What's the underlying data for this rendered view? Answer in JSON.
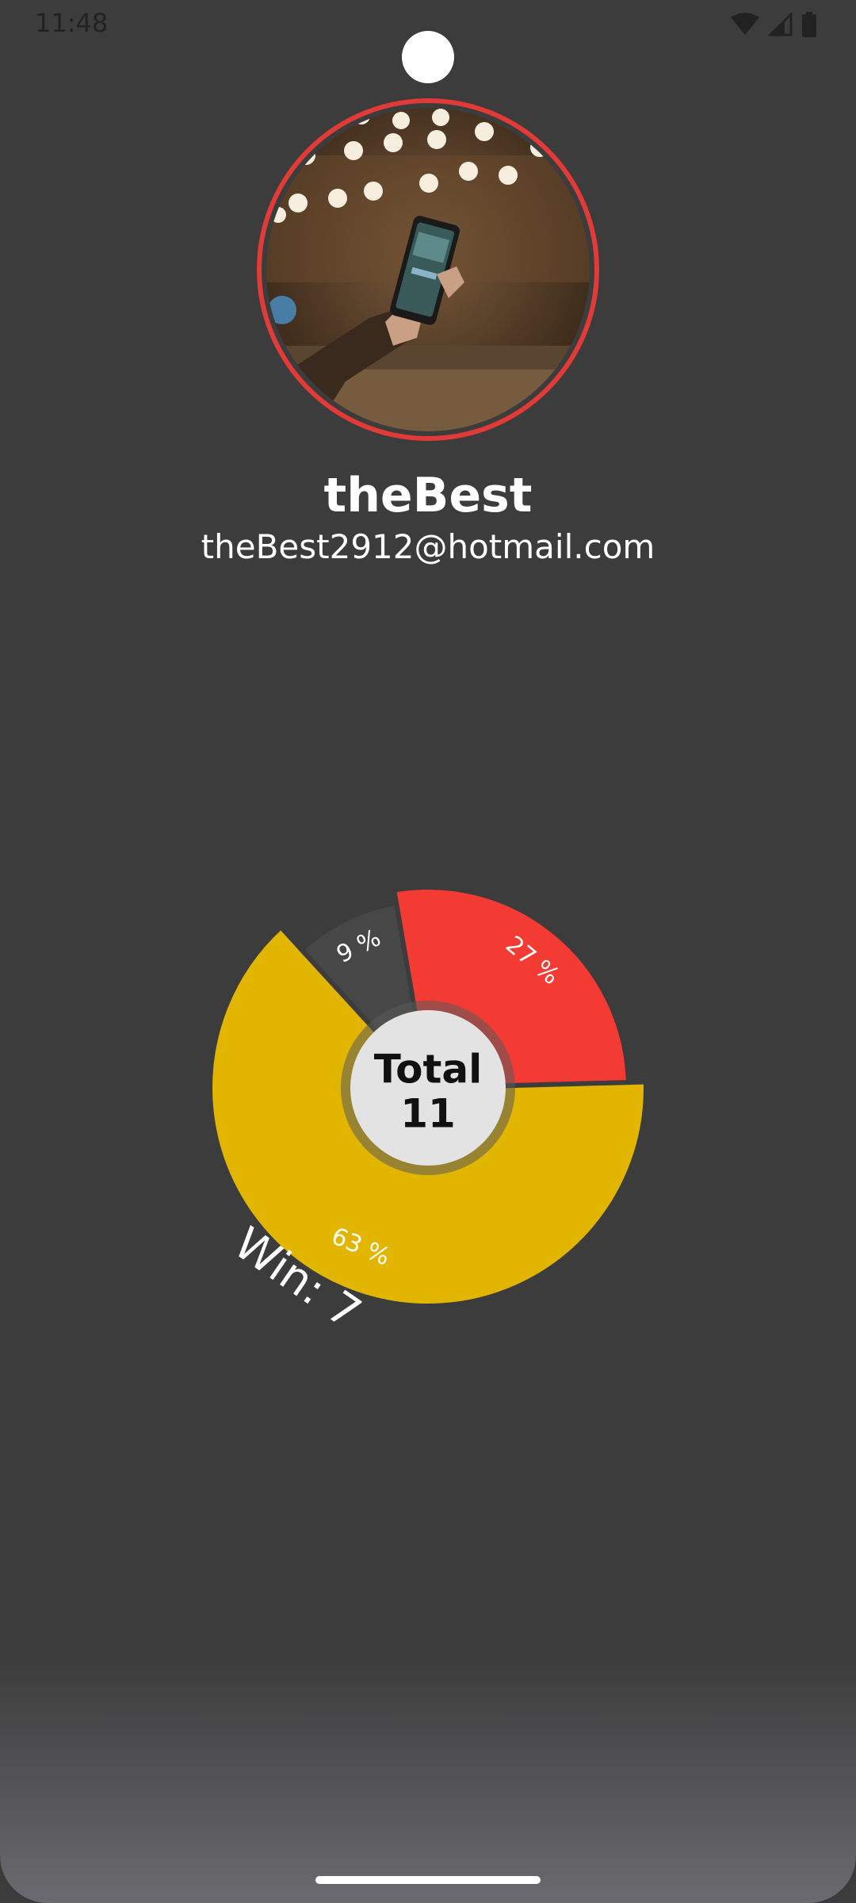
{
  "status_bar": {
    "time": "11:48",
    "icons": [
      "wifi-icon",
      "signal-icon",
      "battery-icon"
    ]
  },
  "profile": {
    "username": "theBest",
    "email": "theBest2912@hotmail.com"
  },
  "colors": {
    "background": "#3c3c3c",
    "avatar_ring": "#e23a36",
    "win": "#e2b500",
    "loss": "#f33a33",
    "draw": "#474747",
    "center": "#e4e3e3"
  },
  "chart_data": {
    "type": "pie",
    "slices": [
      {
        "label": "27 %",
        "value": 27,
        "color": "#f33a33",
        "radius_scale": 0.92
      },
      {
        "label": "63 %",
        "value": 63,
        "color": "#e2b500",
        "radius_scale": 1.0
      },
      {
        "label": "9 %",
        "value": 9,
        "color": "#474747",
        "radius_scale": 0.86
      }
    ],
    "center_label": "Total",
    "center_value": "11",
    "highlight_label": "Win: 7"
  }
}
